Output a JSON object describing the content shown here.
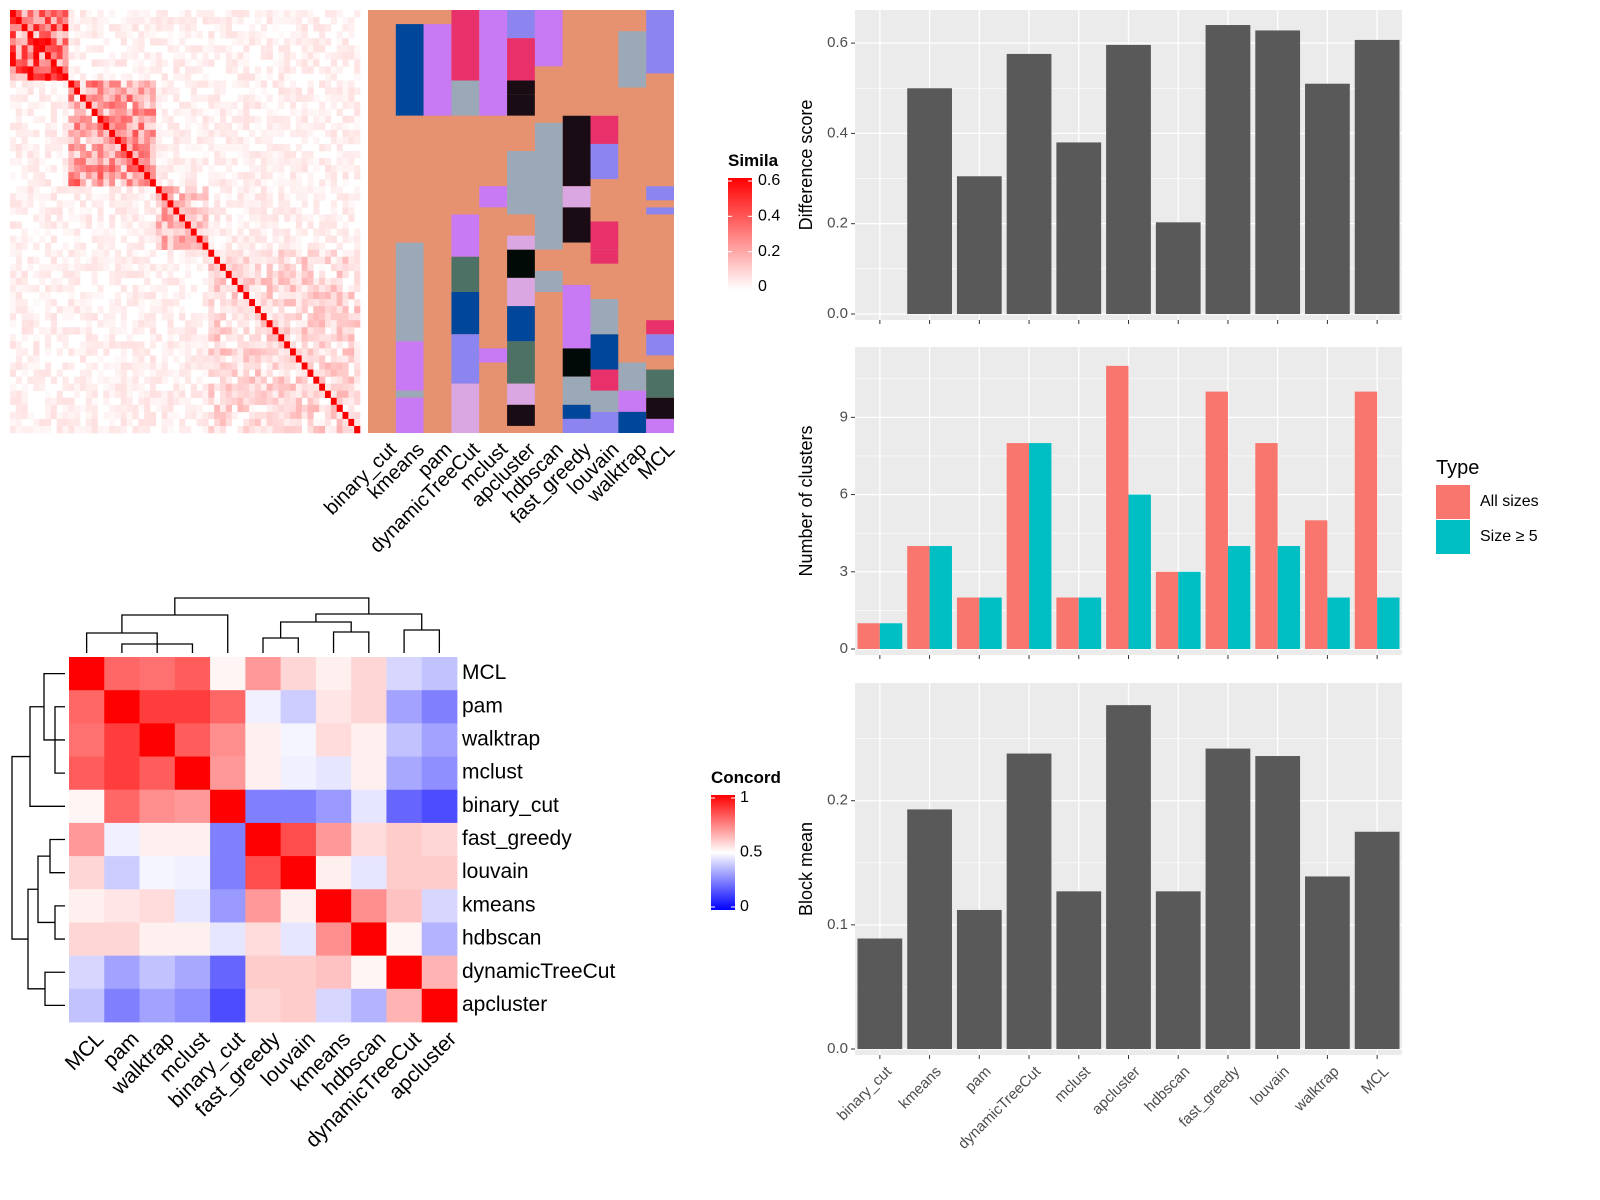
{
  "methods": [
    "binary_cut",
    "kmeans",
    "pam",
    "dynamicTreeCut",
    "mclust",
    "apcluster",
    "hdbscan",
    "fast_greedy",
    "louvain",
    "walktrap",
    "MCL"
  ],
  "colors": {
    "panel_bg": "#ebebeb",
    "grid": "#ffffff",
    "bar": "#595959",
    "all_sizes": "#f8766d",
    "size_ge5": "#00bfc4",
    "sim_high": "#ff0000",
    "sim_low": "#ffffff",
    "conc_low": "#0000ff",
    "conc_mid": "#ffffff",
    "conc_high": "#ff0000",
    "cluster_bg": "#e69270",
    "cluster_palette": [
      "#00479b",
      "#c87af5",
      "#e8306a",
      "#9aa8b8",
      "#8c85f0",
      "#1a0c14",
      "#dba7e3",
      "#4e7165",
      "#020a08",
      "#e69270"
    ]
  },
  "similarity_legend": {
    "title": "Simila",
    "ticks": [
      {
        "label": "0.6",
        "value": 0.6
      },
      {
        "label": "0.4",
        "value": 0.4
      },
      {
        "label": "0.2",
        "value": 0.2
      },
      {
        "label": "0",
        "value": 0
      }
    ]
  },
  "concordance_legend": {
    "title": "Concord",
    "ticks": [
      {
        "label": "1",
        "value": 1
      },
      {
        "label": "0.5",
        "value": 0.5
      },
      {
        "label": "0",
        "value": 0
      }
    ]
  },
  "concordance_order": [
    "MCL",
    "pam",
    "walktrap",
    "mclust",
    "binary_cut",
    "fast_greedy",
    "louvain",
    "kmeans",
    "hdbscan",
    "dynamicTreeCut",
    "apcluster"
  ],
  "chart_data": [
    {
      "type": "heatmap",
      "name": "similarity-heatmap",
      "note_source": "rendered pattern of sample-by-sample similarity with block structure along diagonal",
      "n": 60,
      "blocks": [
        {
          "start": 0,
          "end": 9,
          "level": 0.45
        },
        {
          "start": 10,
          "end": 24,
          "level": 0.28
        },
        {
          "start": 25,
          "end": 33,
          "level": 0.2
        },
        {
          "start": 34,
          "end": 59,
          "level": 0.12
        }
      ],
      "value_range": [
        0,
        0.6
      ]
    },
    {
      "type": "heatmap",
      "name": "cluster-assignment-heatmap",
      "columns": [
        "binary_cut",
        "kmeans",
        "pam",
        "dynamicTreeCut",
        "mclust",
        "apcluster",
        "hdbscan",
        "fast_greedy",
        "louvain",
        "walktrap",
        "MCL"
      ],
      "n_rows": 60,
      "segments": [
        [
          [
            0,
            59,
            9
          ]
        ],
        [
          [
            0,
            1,
            9
          ],
          [
            2,
            14,
            0
          ],
          [
            15,
            32,
            9
          ],
          [
            33,
            46,
            3
          ],
          [
            47,
            53,
            1
          ],
          [
            54,
            54,
            3
          ],
          [
            55,
            59,
            1
          ]
        ],
        [
          [
            0,
            1,
            9
          ],
          [
            2,
            14,
            1
          ],
          [
            15,
            59,
            9
          ]
        ],
        [
          [
            0,
            9,
            2
          ],
          [
            10,
            14,
            3
          ],
          [
            15,
            28,
            9
          ],
          [
            29,
            34,
            1
          ],
          [
            35,
            39,
            7
          ],
          [
            40,
            45,
            0
          ],
          [
            46,
            52,
            4
          ],
          [
            53,
            59,
            6
          ]
        ],
        [
          [
            0,
            14,
            1
          ],
          [
            15,
            24,
            9
          ],
          [
            25,
            27,
            1
          ],
          [
            28,
            47,
            9
          ],
          [
            48,
            49,
            1
          ],
          [
            50,
            59,
            9
          ]
        ],
        [
          [
            0,
            3,
            4
          ],
          [
            4,
            9,
            2
          ],
          [
            10,
            11,
            5
          ],
          [
            12,
            14,
            5
          ],
          [
            15,
            19,
            9
          ],
          [
            20,
            28,
            3
          ],
          [
            29,
            31,
            9
          ],
          [
            32,
            33,
            6
          ],
          [
            34,
            37,
            8
          ],
          [
            38,
            41,
            6
          ],
          [
            42,
            46,
            0
          ],
          [
            47,
            52,
            7
          ],
          [
            53,
            55,
            6
          ],
          [
            56,
            58,
            5
          ],
          [
            59,
            59,
            9
          ]
        ],
        [
          [
            0,
            7,
            1
          ],
          [
            8,
            15,
            9
          ],
          [
            16,
            33,
            3
          ],
          [
            34,
            36,
            9
          ],
          [
            37,
            39,
            3
          ],
          [
            40,
            59,
            9
          ]
        ],
        [
          [
            0,
            14,
            9
          ],
          [
            15,
            24,
            5
          ],
          [
            25,
            27,
            6
          ],
          [
            28,
            32,
            5
          ],
          [
            33,
            38,
            9
          ],
          [
            39,
            40,
            1
          ],
          [
            41,
            47,
            1
          ],
          [
            48,
            51,
            8
          ],
          [
            52,
            55,
            3
          ],
          [
            56,
            57,
            0
          ],
          [
            58,
            59,
            4
          ]
        ],
        [
          [
            0,
            14,
            9
          ],
          [
            15,
            18,
            2
          ],
          [
            19,
            23,
            4
          ],
          [
            24,
            29,
            9
          ],
          [
            30,
            33,
            2
          ],
          [
            34,
            35,
            2
          ],
          [
            36,
            40,
            9
          ],
          [
            41,
            45,
            3
          ],
          [
            46,
            50,
            0
          ],
          [
            51,
            53,
            2
          ],
          [
            54,
            56,
            3
          ],
          [
            57,
            59,
            4
          ]
        ],
        [
          [
            0,
            2,
            9
          ],
          [
            3,
            10,
            3
          ],
          [
            11,
            49,
            9
          ],
          [
            50,
            53,
            3
          ],
          [
            54,
            56,
            1
          ],
          [
            57,
            59,
            0
          ]
        ],
        [
          [
            0,
            8,
            4
          ],
          [
            9,
            24,
            9
          ],
          [
            25,
            26,
            4
          ],
          [
            27,
            27,
            9
          ],
          [
            28,
            28,
            4
          ],
          [
            29,
            43,
            9
          ],
          [
            44,
            45,
            2
          ],
          [
            46,
            48,
            4
          ],
          [
            49,
            50,
            9
          ],
          [
            51,
            54,
            7
          ],
          [
            55,
            57,
            5
          ],
          [
            58,
            59,
            1
          ]
        ]
      ]
    },
    {
      "type": "heatmap",
      "name": "concordance-heatmap",
      "rows": [
        "MCL",
        "pam",
        "walktrap",
        "mclust",
        "binary_cut",
        "fast_greedy",
        "louvain",
        "kmeans",
        "hdbscan",
        "dynamicTreeCut",
        "apcluster"
      ],
      "columns": [
        "MCL",
        "pam",
        "walktrap",
        "mclust",
        "binary_cut",
        "fast_greedy",
        "louvain",
        "kmeans",
        "hdbscan",
        "dynamicTreeCut",
        "apcluster"
      ],
      "value_range": [
        0,
        1
      ],
      "values": [
        [
          1.0,
          0.8,
          0.78,
          0.82,
          0.52,
          0.7,
          0.58,
          0.53,
          0.58,
          0.42,
          0.38
        ],
        [
          0.8,
          1.0,
          0.88,
          0.88,
          0.8,
          0.47,
          0.4,
          0.55,
          0.58,
          0.32,
          0.25
        ],
        [
          0.78,
          0.88,
          1.0,
          0.82,
          0.72,
          0.53,
          0.48,
          0.57,
          0.53,
          0.38,
          0.32
        ],
        [
          0.82,
          0.88,
          0.82,
          1.0,
          0.7,
          0.53,
          0.47,
          0.45,
          0.53,
          0.33,
          0.28
        ],
        [
          0.52,
          0.8,
          0.72,
          0.7,
          1.0,
          0.25,
          0.25,
          0.3,
          0.45,
          0.2,
          0.15
        ],
        [
          0.7,
          0.47,
          0.53,
          0.53,
          0.25,
          1.0,
          0.85,
          0.7,
          0.57,
          0.6,
          0.58
        ],
        [
          0.58,
          0.4,
          0.48,
          0.47,
          0.25,
          0.85,
          1.0,
          0.53,
          0.45,
          0.6,
          0.6
        ],
        [
          0.53,
          0.55,
          0.57,
          0.45,
          0.3,
          0.7,
          0.53,
          1.0,
          0.72,
          0.62,
          0.42
        ],
        [
          0.58,
          0.58,
          0.53,
          0.53,
          0.45,
          0.57,
          0.45,
          0.72,
          1.0,
          0.52,
          0.35
        ],
        [
          0.42,
          0.32,
          0.38,
          0.33,
          0.2,
          0.6,
          0.6,
          0.62,
          0.52,
          1.0,
          0.65
        ],
        [
          0.38,
          0.25,
          0.32,
          0.28,
          0.15,
          0.58,
          0.6,
          0.42,
          0.35,
          0.65,
          1.0
        ]
      ]
    },
    {
      "type": "bar",
      "name": "difference-score",
      "categories": [
        "binary_cut",
        "kmeans",
        "pam",
        "dynamicTreeCut",
        "mclust",
        "apcluster",
        "hdbscan",
        "fast_greedy",
        "louvain",
        "walktrap",
        "MCL"
      ],
      "values": [
        0.0,
        0.5,
        0.305,
        0.576,
        0.38,
        0.596,
        0.203,
        0.64,
        0.628,
        0.51,
        0.607
      ],
      "ylabel": "Difference score",
      "ylim": [
        0,
        0.66
      ],
      "yticks": [
        0.0,
        0.2,
        0.4,
        0.6
      ],
      "ytick_labels": [
        "0.0",
        "0.2",
        "0.4",
        "0.6"
      ]
    },
    {
      "type": "bar",
      "name": "number-of-clusters",
      "categories": [
        "binary_cut",
        "kmeans",
        "pam",
        "dynamicTreeCut",
        "mclust",
        "apcluster",
        "hdbscan",
        "fast_greedy",
        "louvain",
        "walktrap",
        "MCL"
      ],
      "series": [
        {
          "name": "All sizes",
          "values": [
            1,
            4,
            2,
            8,
            2,
            11,
            3,
            10,
            8,
            5,
            10
          ]
        },
        {
          "name": "Size ≥ 5",
          "values": [
            1,
            4,
            2,
            8,
            2,
            6,
            3,
            4,
            4,
            2,
            2
          ]
        }
      ],
      "ylabel": "Number of clusters",
      "ylim": [
        0,
        11.5
      ],
      "yticks": [
        0,
        3,
        6,
        9
      ],
      "ytick_labels": [
        "0",
        "3",
        "6",
        "9"
      ],
      "legend": {
        "title": "Type",
        "position": "right"
      }
    },
    {
      "type": "bar",
      "name": "block-mean",
      "categories": [
        "binary_cut",
        "kmeans",
        "pam",
        "dynamicTreeCut",
        "mclust",
        "apcluster",
        "hdbscan",
        "fast_greedy",
        "louvain",
        "walktrap",
        "MCL"
      ],
      "values": [
        0.089,
        0.193,
        0.112,
        0.238,
        0.127,
        0.277,
        0.127,
        0.242,
        0.236,
        0.139,
        0.175
      ],
      "ylabel": "Block mean",
      "ylim": [
        0,
        0.29
      ],
      "yticks": [
        0.0,
        0.1,
        0.2
      ],
      "ytick_labels": [
        "0.0",
        "0.1",
        "0.2"
      ]
    }
  ]
}
